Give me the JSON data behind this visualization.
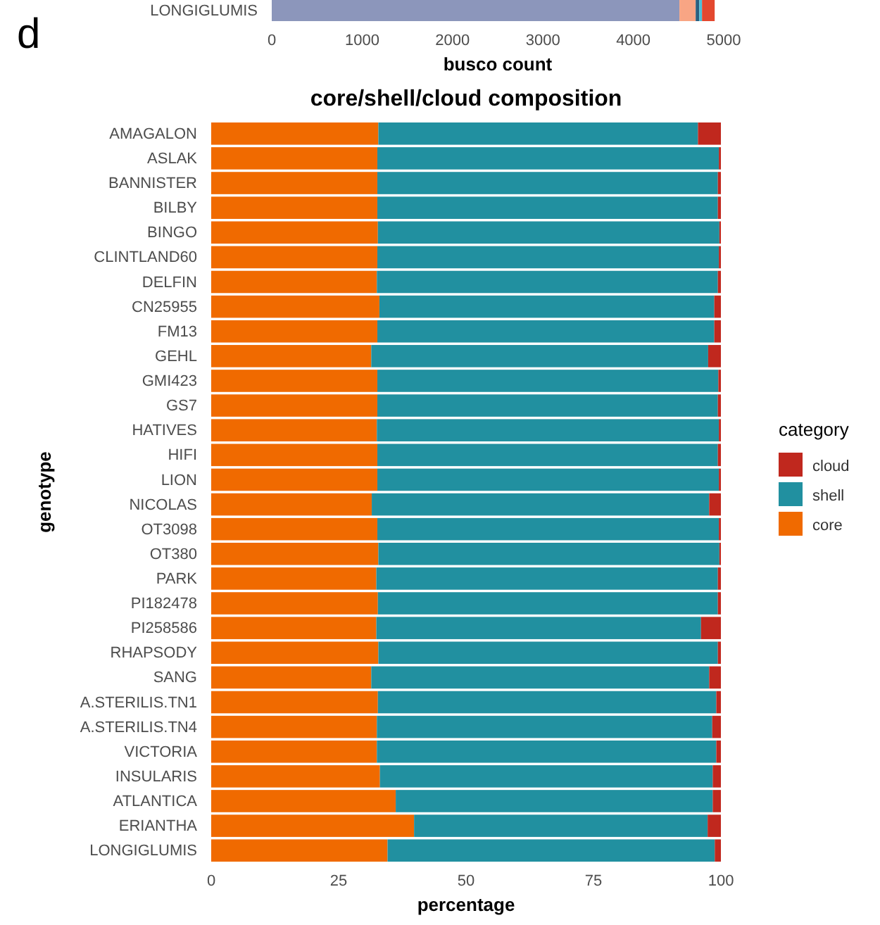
{
  "chart_data": [
    {
      "type": "bar",
      "orientation": "horizontal",
      "stacked": true,
      "categories": [
        "LONGIGLUMIS"
      ],
      "xlabel": "busco count",
      "xlim": [
        0,
        5000
      ],
      "xticks": [
        0,
        1000,
        2000,
        3000,
        4000,
        5000
      ],
      "legend": false,
      "series": [
        {
          "color": "#8c96bb",
          "values": [
            4510
          ]
        },
        {
          "color": "#f8a584",
          "values": [
            180
          ]
        },
        {
          "color": "#2a5f80",
          "values": [
            40
          ]
        },
        {
          "color": "#4cc0d8",
          "values": [
            30
          ]
        },
        {
          "color": "#e3482f",
          "values": [
            140
          ]
        }
      ]
    },
    {
      "type": "bar",
      "orientation": "horizontal",
      "stacked": true,
      "title": "core/shell/cloud composition",
      "xlabel": "percentage",
      "ylabel": "genotype",
      "legend_title": "category",
      "legend": "right",
      "annotations": [
        "d"
      ],
      "categories": [
        "AMAGALON",
        "ASLAK",
        "BANNISTER",
        "BILBY",
        "BINGO",
        "CLINTLAND60",
        "DELFIN",
        "CN25955",
        "FM13",
        "GEHL",
        "GMI423",
        "GS7",
        "HATIVES",
        "HIFI",
        "LION",
        "NICOLAS",
        "OT3098",
        "OT380",
        "PARK",
        "PI182478",
        "PI258586",
        "RHAPSODY",
        "SANG",
        "A.STERILIS.TN1",
        "A.STERILIS.TN4",
        "VICTORIA",
        "INSULARIS",
        "ATLANTICA",
        "ERIANTHA",
        "LONGIGLUMIS"
      ],
      "xlim": [
        0,
        100
      ],
      "xticks": [
        0,
        25,
        50,
        75,
        100
      ],
      "series": [
        {
          "name": "core",
          "color": "#f06a00",
          "values": [
            32.8,
            32.6,
            32.6,
            32.6,
            32.7,
            32.6,
            32.5,
            33.0,
            32.6,
            31.4,
            32.6,
            32.6,
            32.5,
            32.6,
            32.6,
            31.5,
            32.6,
            32.8,
            32.4,
            32.7,
            32.4,
            32.8,
            31.4,
            32.7,
            32.5,
            32.5,
            33.1,
            36.2,
            39.8,
            34.6
          ]
        },
        {
          "name": "shell",
          "color": "#2190a0",
          "values": [
            62.7,
            67.0,
            66.8,
            66.8,
            67.0,
            67.0,
            66.9,
            65.7,
            66.1,
            66.1,
            66.9,
            66.8,
            67.1,
            66.8,
            67.0,
            66.2,
            67.0,
            66.9,
            67.0,
            66.7,
            63.7,
            66.6,
            66.3,
            66.4,
            65.8,
            66.6,
            65.3,
            62.2,
            57.6,
            64.2
          ]
        },
        {
          "name": "cloud",
          "color": "#c0281e",
          "values": [
            4.5,
            0.4,
            0.6,
            0.6,
            0.3,
            0.4,
            0.6,
            1.3,
            1.3,
            2.5,
            0.5,
            0.6,
            0.4,
            0.6,
            0.4,
            2.3,
            0.4,
            0.3,
            0.6,
            0.6,
            3.9,
            0.6,
            2.3,
            0.9,
            1.7,
            0.9,
            1.6,
            1.6,
            2.6,
            1.2
          ]
        }
      ]
    }
  ]
}
